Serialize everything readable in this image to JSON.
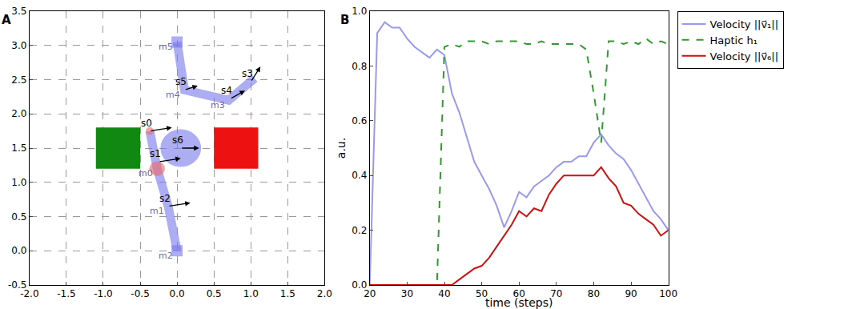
{
  "chart_data": [
    {
      "title": "A",
      "type": "diagram",
      "xlim": [
        -2,
        2
      ],
      "xticks": [
        {
          "value": -2,
          "label": "-2.0"
        },
        {
          "value": -1.5,
          "label": "-1.5"
        },
        {
          "value": -1,
          "label": "-1.0"
        },
        {
          "value": -0.5,
          "label": "-0.5"
        },
        {
          "value": 0,
          "label": "0.0"
        },
        {
          "value": 0.5,
          "label": "0.5"
        },
        {
          "value": 1,
          "label": "1.0"
        },
        {
          "value": 1.5,
          "label": "1.5"
        },
        {
          "value": 2,
          "label": "2.0"
        }
      ],
      "ylim": [
        -0.5,
        3.5
      ],
      "yticks": [
        {
          "value": -0.5,
          "label": "-0.5"
        },
        {
          "value": 0,
          "label": "0.0"
        },
        {
          "value": 0.5,
          "label": "0.5"
        },
        {
          "value": 1,
          "label": "1.0"
        },
        {
          "value": 1.5,
          "label": "1.5"
        },
        {
          "value": 2,
          "label": "2.0"
        },
        {
          "value": 2.5,
          "label": "2.5"
        },
        {
          "value": 3,
          "label": "3.0"
        },
        {
          "value": 3.5,
          "label": "3.5"
        }
      ],
      "grid": true,
      "rectangles": [
        {
          "x": [
            -1.1,
            -0.5
          ],
          "y": [
            1.2,
            1.8
          ],
          "color": "#118811"
        },
        {
          "x": [
            0.5,
            1.1
          ],
          "y": [
            1.2,
            1.8
          ],
          "color": "#ee1111"
        }
      ],
      "circles": [
        {
          "x": 0.05,
          "y": 1.5,
          "r": 0.27,
          "color": "#7777ee"
        },
        {
          "x": -0.27,
          "y": 1.2,
          "r": 0.1,
          "color": "#ee6666"
        },
        {
          "x": -0.37,
          "y": 1.75,
          "r": 0.05,
          "color": "#ee6666"
        }
      ],
      "arms": [
        {
          "x": [
            0,
            -0.12,
            -0.27,
            -0.37
          ],
          "y": [
            0,
            0.65,
            1.2,
            1.75
          ],
          "color": "#7777ee"
        },
        {
          "x": [
            0,
            0.1,
            0.7,
            1.05
          ],
          "y": [
            3.05,
            2.35,
            2.2,
            2.52
          ],
          "color": "#7777ee"
        }
      ],
      "joints": [
        {
          "label": "m0",
          "x": -0.27,
          "y": 1.2
        },
        {
          "label": "m1",
          "x": -0.12,
          "y": 0.65
        },
        {
          "label": "m2",
          "x": 0,
          "y": 0
        },
        {
          "label": "m3",
          "x": 0.7,
          "y": 2.2
        },
        {
          "label": "m4",
          "x": 0.1,
          "y": 2.35
        },
        {
          "label": "m5",
          "x": 0,
          "y": 3.05
        }
      ],
      "sensors": [
        {
          "label": "s0",
          "x": -0.37,
          "y": 1.75,
          "dx": 0.3,
          "dy": 0.05
        },
        {
          "label": "s1",
          "x": -0.25,
          "y": 1.3,
          "dx": 0.3,
          "dy": 0.05
        },
        {
          "label": "s2",
          "x": -0.12,
          "y": 0.65,
          "dx": 0.3,
          "dy": 0.05
        },
        {
          "label": "s3",
          "x": 1.0,
          "y": 2.47,
          "dx": 0.13,
          "dy": 0.22
        },
        {
          "label": "s4",
          "x": 0.72,
          "y": 2.22,
          "dx": 0.2,
          "dy": 0.12
        },
        {
          "label": "s5",
          "x": 0.1,
          "y": 2.35,
          "dx": 0.18,
          "dy": 0.06
        },
        {
          "label": "s6",
          "x": 0.05,
          "y": 1.5,
          "dx": 0.25,
          "dy": 0
        }
      ]
    },
    {
      "title": "B",
      "type": "line",
      "x_label": "time (steps)",
      "y_label": "a.u.",
      "xlim": [
        20,
        100
      ],
      "xticks": [
        20,
        30,
        40,
        50,
        60,
        70,
        80,
        90,
        100
      ],
      "ylim": [
        0,
        1
      ],
      "yticks": [
        {
          "value": 0,
          "label": "0.0"
        },
        {
          "value": 0.2,
          "label": "0.2"
        },
        {
          "value": 0.4,
          "label": "0.4"
        },
        {
          "value": 0.6,
          "label": "0.6"
        },
        {
          "value": 0.8,
          "label": "0.8"
        },
        {
          "value": 1,
          "label": "1.0"
        }
      ],
      "grid": false,
      "legend": "outside right",
      "x": [
        20,
        22,
        24,
        26,
        28,
        30,
        32,
        34,
        36,
        38,
        40,
        42,
        44,
        46,
        48,
        50,
        52,
        54,
        56,
        58,
        60,
        62,
        64,
        66,
        68,
        70,
        72,
        74,
        76,
        78,
        80,
        82,
        84,
        86,
        88,
        90,
        92,
        94,
        96,
        98,
        100
      ],
      "series": [
        {
          "name": "Velocity ||v⃗₁||",
          "color": "#9999ee",
          "line_style": "solid",
          "values": [
            0,
            0.92,
            0.96,
            0.94,
            0.94,
            0.9,
            0.87,
            0.85,
            0.83,
            0.86,
            0.84,
            0.7,
            0.63,
            0.54,
            0.45,
            0.4,
            0.35,
            0.29,
            0.21,
            0.27,
            0.34,
            0.32,
            0.36,
            0.38,
            0.4,
            0.43,
            0.45,
            0.45,
            0.47,
            0.47,
            0.52,
            0.55,
            0.51,
            0.48,
            0.46,
            0.42,
            0.37,
            0.32,
            0.27,
            0.24,
            0.2
          ]
        },
        {
          "name": "Haptic h₁",
          "color": "#339933",
          "line_style": "dash",
          "values": [
            0,
            0,
            0,
            0,
            0,
            0,
            0,
            0,
            0,
            0,
            0.87,
            0.88,
            0.87,
            0.89,
            0.89,
            0.89,
            0.88,
            0.89,
            0.89,
            0.89,
            0.89,
            0.88,
            0.88,
            0.89,
            0.88,
            0.88,
            0.88,
            0.88,
            0.88,
            0.86,
            0.7,
            0.52,
            0.89,
            0.89,
            0.88,
            0.89,
            0.88,
            0.9,
            0.88,
            0.89,
            0.88
          ]
        },
        {
          "name": "Velocity ||v⃗₆||",
          "color": "#cc1111",
          "line_style": "solid",
          "values": [
            0,
            0,
            0,
            0,
            0,
            0,
            0,
            0,
            0,
            0,
            0,
            0,
            0.02,
            0.04,
            0.06,
            0.07,
            0.1,
            0.14,
            0.18,
            0.22,
            0.27,
            0.25,
            0.28,
            0.27,
            0.33,
            0.37,
            0.4,
            0.4,
            0.4,
            0.4,
            0.4,
            0.43,
            0.39,
            0.36,
            0.3,
            0.29,
            0.26,
            0.24,
            0.22,
            0.18,
            0.2
          ]
        }
      ]
    }
  ]
}
